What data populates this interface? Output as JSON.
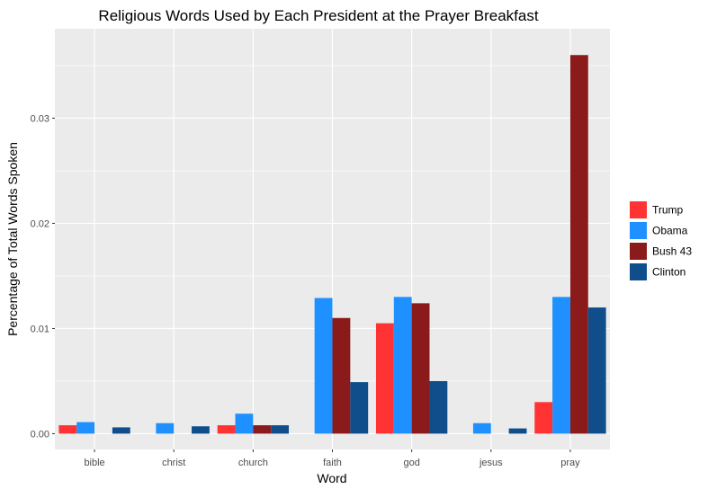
{
  "chart_data": {
    "type": "bar",
    "title": "Religious Words Used by Each President at the Prayer Breakfast",
    "xlabel": "Word",
    "ylabel": "Percentage of Total Words Spoken",
    "categories": [
      "bible",
      "christ",
      "church",
      "faith",
      "god",
      "jesus",
      "pray"
    ],
    "series": [
      {
        "name": "Trump",
        "color": "#ff3333",
        "values": [
          0.0008,
          0,
          0.0008,
          0,
          0.0105,
          0,
          0.003
        ]
      },
      {
        "name": "Obama",
        "color": "#1e90ff",
        "values": [
          0.0011,
          0.001,
          0.0019,
          0.0129,
          0.013,
          0.001,
          0.013
        ]
      },
      {
        "name": "Bush 43",
        "color": "#8b1a1a",
        "values": [
          0,
          0,
          0.0008,
          0.011,
          0.0124,
          0,
          0.036
        ]
      },
      {
        "name": "Clinton",
        "color": "#104e8b",
        "values": [
          0.0006,
          0.0007,
          0.0008,
          0.0049,
          0.005,
          0.0005,
          0.012
        ]
      }
    ],
    "yticks": [
      "0.00",
      "0.01",
      "0.02",
      "0.03"
    ],
    "ylim": [
      -0.0015,
      0.0385
    ],
    "grid": true,
    "legend_position": "right",
    "panel_background": "#ebebeb",
    "grid_color": "#ffffff"
  }
}
